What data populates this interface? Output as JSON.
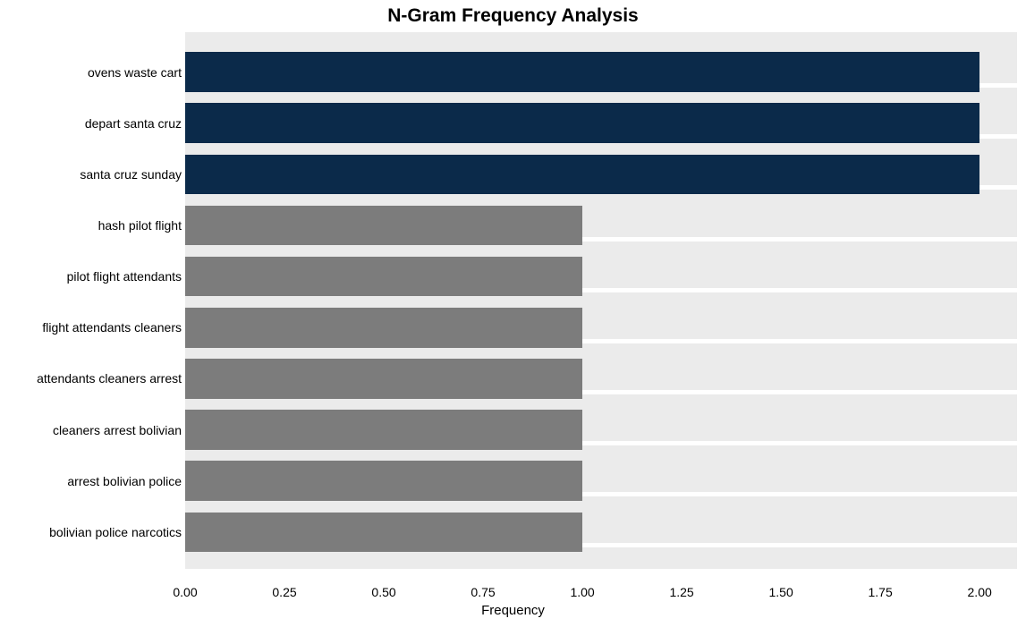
{
  "chart": {
    "type": "bar-horizontal",
    "title": "N-Gram Frequency Analysis",
    "title_fontsize": 21,
    "title_fontweight": "700",
    "title_color": "#000000",
    "xaxis_title": "Frequency",
    "xaxis_title_fontsize": 15,
    "background_color": "#ffffff",
    "plot_band_color": "#ebebeb",
    "axis_label_color": "#000000",
    "axis_label_fontsize": 14,
    "xlim": [
      0,
      2
    ],
    "xticks": [
      0.0,
      0.25,
      0.5,
      0.75,
      1.0,
      1.25,
      1.5,
      1.75,
      2.0
    ],
    "xtick_labels": [
      "0.00",
      "0.25",
      "0.50",
      "0.75",
      "1.00",
      "1.25",
      "1.50",
      "1.75",
      "2.00"
    ],
    "grid_color": "#ebebeb",
    "bar_height_ratio": 0.78,
    "categories": [
      "ovens waste cart",
      "depart santa cruz",
      "santa cruz sunday",
      "hash pilot flight",
      "pilot flight attendants",
      "flight attendants cleaners",
      "attendants cleaners arrest",
      "cleaners arrest bolivian",
      "arrest bolivian police",
      "bolivian police narcotics"
    ],
    "values": [
      2,
      2,
      2,
      1,
      1,
      1,
      1,
      1,
      1,
      1
    ],
    "bar_colors": [
      "#0b2a4a",
      "#0b2a4a",
      "#0b2a4a",
      "#7c7c7c",
      "#7c7c7c",
      "#7c7c7c",
      "#7c7c7c",
      "#7c7c7c",
      "#7c7c7c",
      "#7c7c7c"
    ]
  }
}
